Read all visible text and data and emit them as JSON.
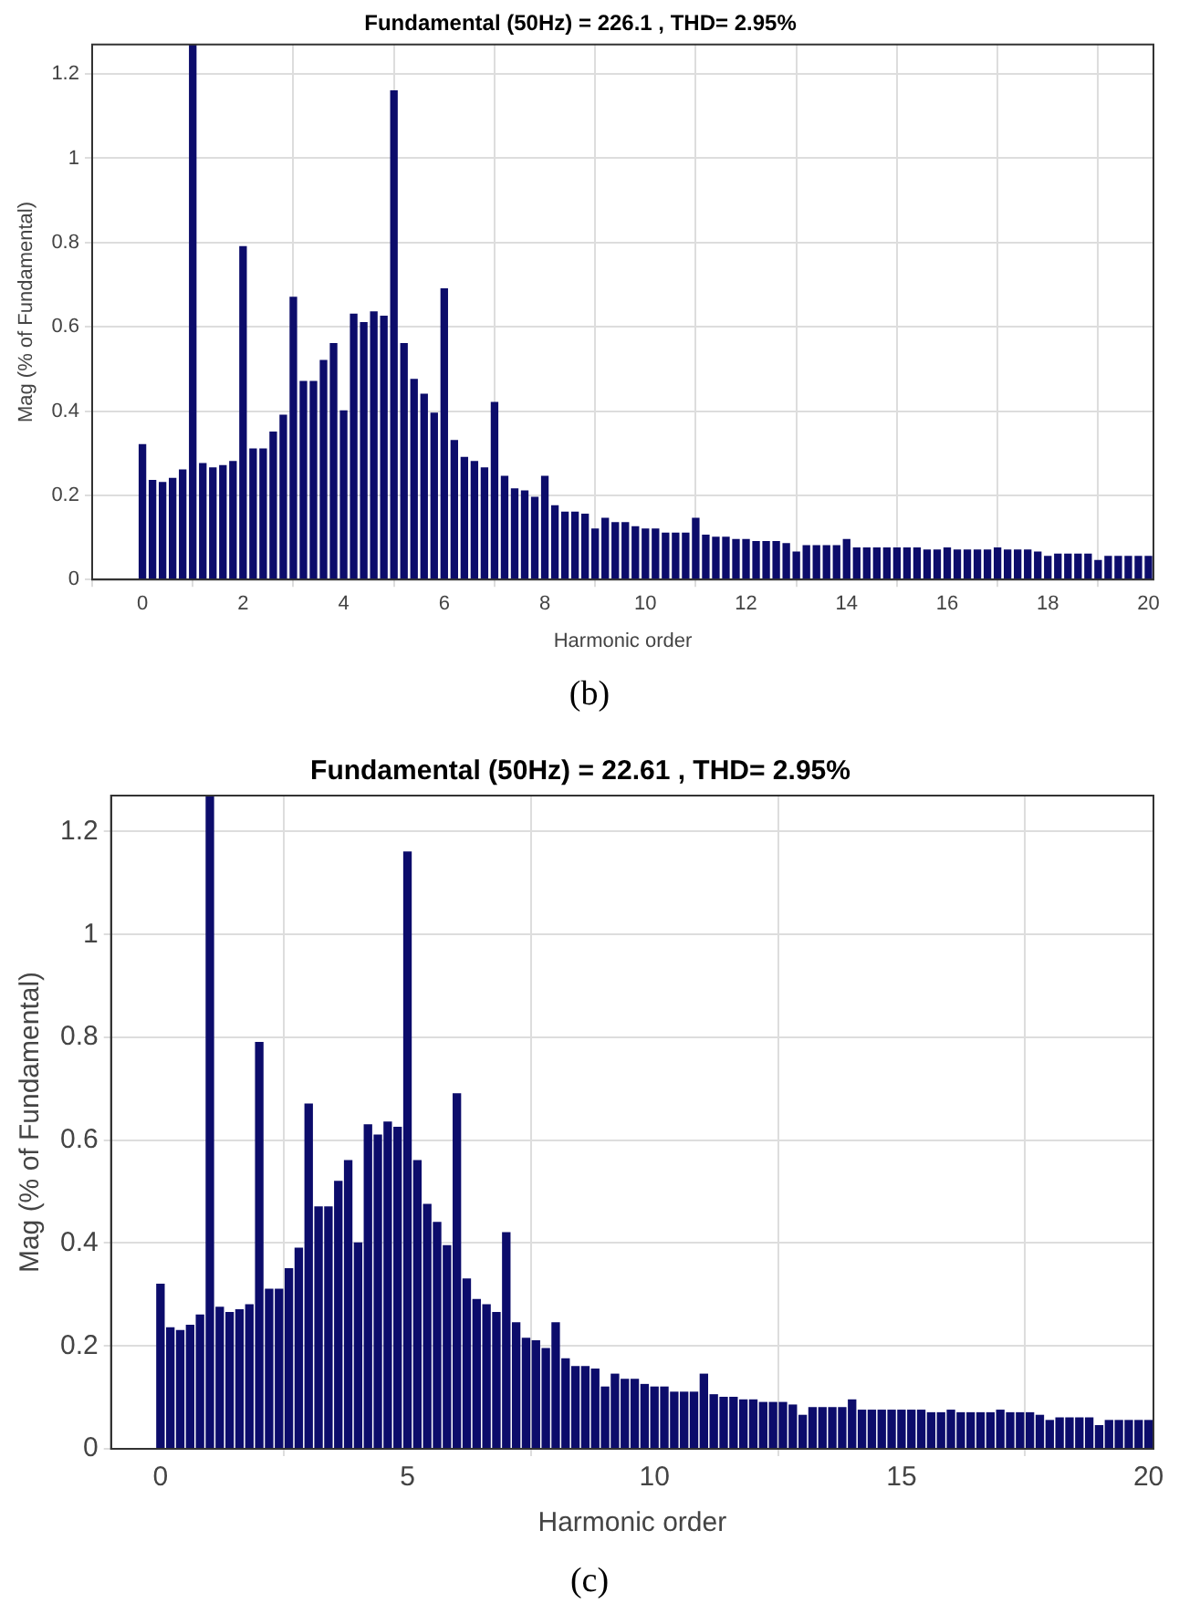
{
  "chart_data": [
    {
      "type": "bar",
      "title": "Fundamental (50Hz) = 226.1 , THD= 2.95%",
      "xlabel": "Harmonic order",
      "ylabel": "Mag (% of Fundamental)",
      "annotations": [
        "(b)"
      ],
      "grid": true,
      "xlim": [
        -1,
        20.1
      ],
      "xticks": [
        0,
        2,
        4,
        6,
        8,
        10,
        12,
        14,
        16,
        18,
        20
      ],
      "ylim": [
        0,
        1.27
      ],
      "yticks": [
        0,
        0.2,
        0.4,
        0.6,
        0.8,
        1,
        1.2
      ],
      "x": [
        0,
        0.2,
        0.4,
        0.6,
        0.8,
        1,
        1.2,
        1.4,
        1.6,
        1.8,
        2,
        2.2,
        2.4,
        2.6,
        2.8,
        3,
        3.2,
        3.4,
        3.6,
        3.8,
        4,
        4.2,
        4.4,
        4.6,
        4.8,
        5,
        5.2,
        5.4,
        5.6,
        5.8,
        6,
        6.2,
        6.4,
        6.6,
        6.8,
        7,
        7.2,
        7.4,
        7.6,
        7.8,
        8,
        8.2,
        8.4,
        8.6,
        8.8,
        9,
        9.2,
        9.4,
        9.6,
        9.8,
        10,
        10.2,
        10.4,
        10.6,
        10.8,
        11,
        11.2,
        11.4,
        11.6,
        11.8,
        12,
        12.2,
        12.4,
        12.6,
        12.8,
        13,
        13.2,
        13.4,
        13.6,
        13.8,
        14,
        14.2,
        14.4,
        14.6,
        14.8,
        15,
        15.2,
        15.4,
        15.6,
        15.8,
        16,
        16.2,
        16.4,
        16.6,
        16.8,
        17,
        17.2,
        17.4,
        17.6,
        17.8,
        18,
        18.2,
        18.4,
        18.6,
        18.8,
        19,
        19.2,
        19.4,
        19.6,
        19.8,
        20
      ],
      "series": [
        {
          "color": "#0c0c6b",
          "values": [
            0.32,
            0.235,
            0.23,
            0.24,
            0.26,
            1.27,
            0.275,
            0.265,
            0.27,
            0.28,
            0.79,
            0.31,
            0.31,
            0.35,
            0.39,
            0.67,
            0.47,
            0.47,
            0.52,
            0.56,
            0.4,
            0.63,
            0.61,
            0.635,
            0.625,
            1.16,
            0.56,
            0.475,
            0.44,
            0.395,
            0.69,
            0.33,
            0.29,
            0.28,
            0.265,
            0.42,
            0.245,
            0.215,
            0.21,
            0.195,
            0.245,
            0.175,
            0.16,
            0.16,
            0.155,
            0.12,
            0.145,
            0.135,
            0.135,
            0.125,
            0.12,
            0.12,
            0.11,
            0.11,
            0.11,
            0.145,
            0.105,
            0.1,
            0.1,
            0.095,
            0.095,
            0.09,
            0.09,
            0.09,
            0.085,
            0.065,
            0.08,
            0.08,
            0.08,
            0.08,
            0.095,
            0.075,
            0.075,
            0.075,
            0.075,
            0.075,
            0.075,
            0.075,
            0.07,
            0.07,
            0.075,
            0.07,
            0.07,
            0.07,
            0.07,
            0.075,
            0.07,
            0.07,
            0.07,
            0.065,
            0.055,
            0.06,
            0.06,
            0.06,
            0.06,
            0.045,
            0.055,
            0.055,
            0.055,
            0.055,
            0.055
          ]
        }
      ]
    },
    {
      "type": "bar",
      "title": "Fundamental (50Hz) = 22.61 , THD= 2.95%",
      "xlabel": "Harmonic order",
      "ylabel": "Mag (% of Fundamental)",
      "annotations": [
        "(c)"
      ],
      "grid": true,
      "xlim": [
        -1,
        20.1
      ],
      "xticks": [
        0,
        5,
        10,
        15,
        20
      ],
      "ylim": [
        0,
        1.27
      ],
      "yticks": [
        0,
        0.2,
        0.4,
        0.6,
        0.8,
        1,
        1.2
      ],
      "x": [
        0,
        0.2,
        0.4,
        0.6,
        0.8,
        1,
        1.2,
        1.4,
        1.6,
        1.8,
        2,
        2.2,
        2.4,
        2.6,
        2.8,
        3,
        3.2,
        3.4,
        3.6,
        3.8,
        4,
        4.2,
        4.4,
        4.6,
        4.8,
        5,
        5.2,
        5.4,
        5.6,
        5.8,
        6,
        6.2,
        6.4,
        6.6,
        6.8,
        7,
        7.2,
        7.4,
        7.6,
        7.8,
        8,
        8.2,
        8.4,
        8.6,
        8.8,
        9,
        9.2,
        9.4,
        9.6,
        9.8,
        10,
        10.2,
        10.4,
        10.6,
        10.8,
        11,
        11.2,
        11.4,
        11.6,
        11.8,
        12,
        12.2,
        12.4,
        12.6,
        12.8,
        13,
        13.2,
        13.4,
        13.6,
        13.8,
        14,
        14.2,
        14.4,
        14.6,
        14.8,
        15,
        15.2,
        15.4,
        15.6,
        15.8,
        16,
        16.2,
        16.4,
        16.6,
        16.8,
        17,
        17.2,
        17.4,
        17.6,
        17.8,
        18,
        18.2,
        18.4,
        18.6,
        18.8,
        19,
        19.2,
        19.4,
        19.6,
        19.8,
        20
      ],
      "series": [
        {
          "color": "#0c0c6b",
          "values": [
            0.32,
            0.235,
            0.23,
            0.24,
            0.26,
            1.27,
            0.275,
            0.265,
            0.27,
            0.28,
            0.79,
            0.31,
            0.31,
            0.35,
            0.39,
            0.67,
            0.47,
            0.47,
            0.52,
            0.56,
            0.4,
            0.63,
            0.61,
            0.635,
            0.625,
            1.16,
            0.56,
            0.475,
            0.44,
            0.395,
            0.69,
            0.33,
            0.29,
            0.28,
            0.265,
            0.42,
            0.245,
            0.215,
            0.21,
            0.195,
            0.245,
            0.175,
            0.16,
            0.16,
            0.155,
            0.12,
            0.145,
            0.135,
            0.135,
            0.125,
            0.12,
            0.12,
            0.11,
            0.11,
            0.11,
            0.145,
            0.105,
            0.1,
            0.1,
            0.095,
            0.095,
            0.09,
            0.09,
            0.09,
            0.085,
            0.065,
            0.08,
            0.08,
            0.08,
            0.08,
            0.095,
            0.075,
            0.075,
            0.075,
            0.075,
            0.075,
            0.075,
            0.075,
            0.07,
            0.07,
            0.075,
            0.07,
            0.07,
            0.07,
            0.07,
            0.075,
            0.07,
            0.07,
            0.07,
            0.065,
            0.055,
            0.06,
            0.06,
            0.06,
            0.06,
            0.045,
            0.055,
            0.055,
            0.055,
            0.055,
            0.055
          ]
        }
      ]
    }
  ]
}
